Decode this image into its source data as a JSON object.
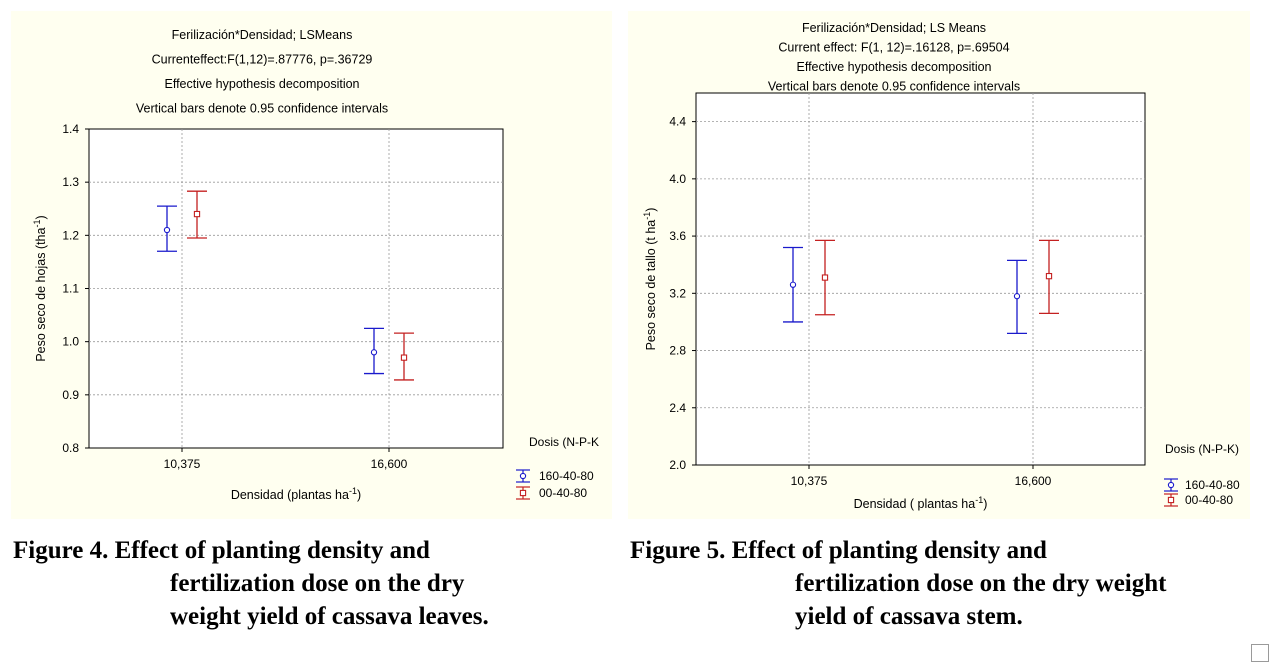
{
  "chart_data": [
    {
      "type": "scatter",
      "title_lines": [
        "Ferilización*Densidad; LSMeans",
        "Currenteffect:F(1,12)=.87776, p=.36729",
        "Effective hypothesis decomposition",
        "Vertical bars denote 0.95 confidence intervals"
      ],
      "xlabel": "Densidad (plantas ha",
      "xlabel_sup": "-1",
      "xlabel_end": ")",
      "ylabel": "Peso seco de hojas (tha",
      "ylabel_sup": "-1",
      "ylabel_end": ")",
      "categories": [
        "10,375",
        "16,600"
      ],
      "ylim": [
        0.8,
        1.4
      ],
      "yticks": [
        "0.8",
        "0.9",
        "1.0",
        "1.1",
        "1.2",
        "1.3",
        "1.4"
      ],
      "grid": true,
      "legend_title": "Dosis (N-P-K",
      "legend_position": "bottom-right",
      "series": [
        {
          "name": "160-40-80",
          "color": "#1a1acc",
          "marker": "circle",
          "mean": [
            1.21,
            0.98
          ],
          "lower": [
            1.17,
            0.94
          ],
          "upper": [
            1.255,
            1.025
          ]
        },
        {
          "name": "00-40-80",
          "color": "#c42020",
          "marker": "square",
          "mean": [
            1.24,
            0.97
          ],
          "lower": [
            1.195,
            0.928
          ],
          "upper": [
            1.283,
            1.016
          ]
        }
      ]
    },
    {
      "type": "scatter",
      "title_lines": [
        "Ferilización*Densidad; LS Means",
        "Current effect: F(1, 12)=.16128, p=.69504",
        "Effective hypothesis decomposition",
        "Vertical bars denote 0.95 confidence intervals"
      ],
      "xlabel": "Densidad ( plantas ha",
      "xlabel_sup": "-1",
      "xlabel_end": ")",
      "ylabel": "Peso seco de tallo (t ha",
      "ylabel_sup": "-1",
      "ylabel_end": ")",
      "categories": [
        "10,375",
        "16,600"
      ],
      "ylim": [
        2.0,
        4.6
      ],
      "yticks": [
        "2.0",
        "2.4",
        "2.8",
        "3.2",
        "3.6",
        "4.0",
        "4.4"
      ],
      "grid": true,
      "legend_title": "Dosis (N-P-K)",
      "legend_position": "bottom-right",
      "series": [
        {
          "name": "160-40-80",
          "color": "#1a1acc",
          "marker": "circle",
          "mean": [
            3.26,
            3.18
          ],
          "lower": [
            3.0,
            2.92
          ],
          "upper": [
            3.52,
            3.43
          ]
        },
        {
          "name": "00-40-80",
          "color": "#c42020",
          "marker": "square",
          "mean": [
            3.31,
            3.32
          ],
          "lower": [
            3.05,
            3.06
          ],
          "upper": [
            3.57,
            3.57
          ]
        }
      ]
    }
  ],
  "captions": [
    {
      "lines": [
        "Figure 4. Effect of planting density and",
        "fertilization dose on the dry",
        "weight yield of cassava leaves."
      ]
    },
    {
      "lines": [
        "Figure 5. Effect of planting density and",
        "fertilization dose on the dry weight",
        "yield of cassava stem."
      ]
    }
  ]
}
